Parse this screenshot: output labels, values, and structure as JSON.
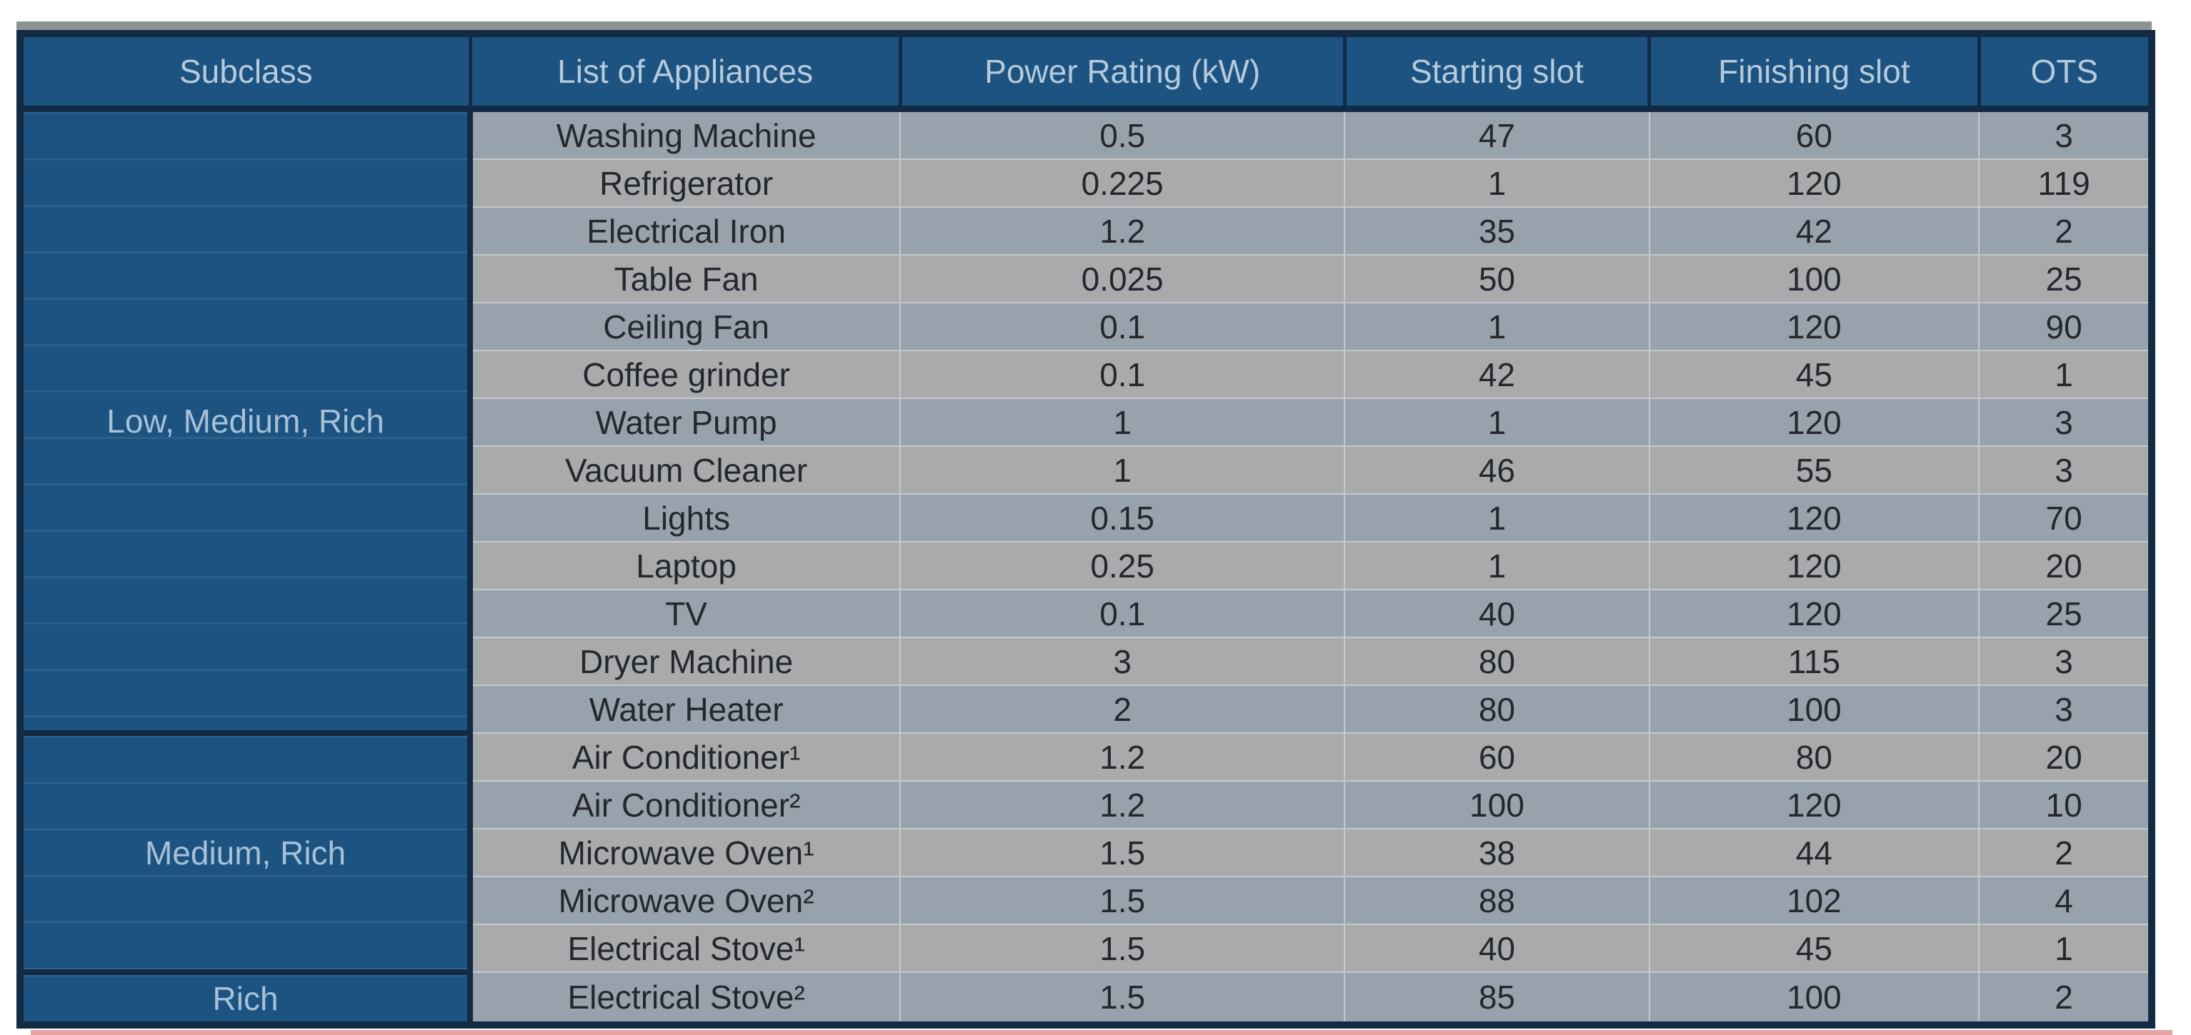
{
  "table": {
    "headers": [
      "Subclass",
      "List of Appliances",
      "Power Rating (kW)",
      "Starting slot",
      "Finishing slot",
      "OTS"
    ],
    "groups": [
      {
        "subclass": "Low, Medium, Rich",
        "rows": [
          {
            "appliance": "Washing Machine",
            "power": "0.5",
            "start": "47",
            "finish": "60",
            "ots": "3"
          },
          {
            "appliance": "Refrigerator",
            "power": "0.225",
            "start": "1",
            "finish": "120",
            "ots": "119"
          },
          {
            "appliance": "Electrical Iron",
            "power": "1.2",
            "start": "35",
            "finish": "42",
            "ots": "2"
          },
          {
            "appliance": "Table Fan",
            "power": "0.025",
            "start": "50",
            "finish": "100",
            "ots": "25"
          },
          {
            "appliance": "Ceiling Fan",
            "power": "0.1",
            "start": "1",
            "finish": "120",
            "ots": "90"
          },
          {
            "appliance": "Coffee grinder",
            "power": "0.1",
            "start": "42",
            "finish": "45",
            "ots": "1"
          },
          {
            "appliance": "Water Pump",
            "power": "1",
            "start": "1",
            "finish": "120",
            "ots": "3"
          },
          {
            "appliance": "Vacuum Cleaner",
            "power": "1",
            "start": "46",
            "finish": "55",
            "ots": "3"
          },
          {
            "appliance": "Lights",
            "power": "0.15",
            "start": "1",
            "finish": "120",
            "ots": "70"
          },
          {
            "appliance": "Laptop",
            "power": "0.25",
            "start": "1",
            "finish": "120",
            "ots": "20"
          },
          {
            "appliance": "TV",
            "power": "0.1",
            "start": "40",
            "finish": "120",
            "ots": "25"
          },
          {
            "appliance": "Dryer Machine",
            "power": "3",
            "start": "80",
            "finish": "115",
            "ots": "3"
          },
          {
            "appliance": "Water Heater",
            "power": "2",
            "start": "80",
            "finish": "100",
            "ots": "3"
          }
        ]
      },
      {
        "subclass": "Medium, Rich",
        "rows": [
          {
            "appliance": "Air Conditioner¹",
            "power": "1.2",
            "start": "60",
            "finish": "80",
            "ots": "20"
          },
          {
            "appliance": "Air Conditioner²",
            "power": "1.2",
            "start": "100",
            "finish": "120",
            "ots": "10"
          },
          {
            "appliance": "Microwave Oven¹",
            "power": "1.5",
            "start": "38",
            "finish": "44",
            "ots": "2"
          },
          {
            "appliance": "Microwave Oven²",
            "power": "1.5",
            "start": "88",
            "finish": "102",
            "ots": "4"
          },
          {
            "appliance": "Electrical Stove¹",
            "power": "1.5",
            "start": "40",
            "finish": "45",
            "ots": "1"
          }
        ]
      },
      {
        "subclass": "Rich",
        "rows": [
          {
            "appliance": "Electrical Stove²",
            "power": "1.5",
            "start": "85",
            "finish": "100",
            "ots": "2"
          }
        ]
      }
    ]
  },
  "colors": {
    "header_blue": "#1d5381",
    "border_navy": "#132a44",
    "row_odd": "#98a2ad",
    "row_even": "#a8aaac",
    "grid_line": "#c5c9cd",
    "header_text": "#b5cadb",
    "subclass_text": "#a5c1d8",
    "body_text": "#24282d",
    "top_strip_gray": "#909394",
    "bottom_strip_pink": "#e4a4a0",
    "page_background": "#ffffff"
  }
}
